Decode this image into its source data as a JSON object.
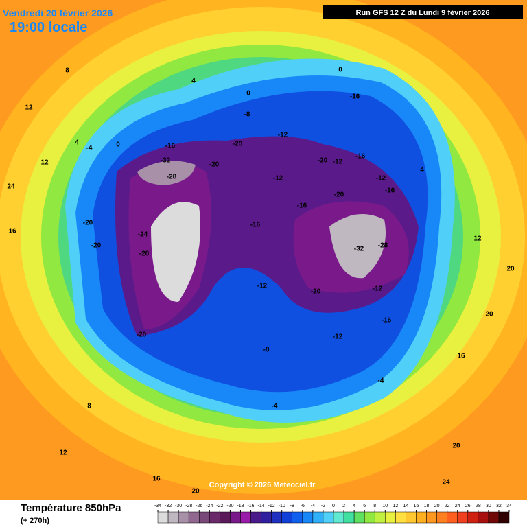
{
  "header": {
    "date": "Vendredi 20 février 2026",
    "time": "19:00 locale",
    "run": "Run GFS 12 Z du Lundi 9 février 2026"
  },
  "copyright": "Copyright © 2026 Meteociel.fr",
  "legend": {
    "title": "Température 850hPa",
    "lead": "(+ 270h)",
    "ticks": [
      -34,
      -32,
      -30,
      -28,
      -26,
      -24,
      -22,
      -20,
      -18,
      -16,
      -14,
      -12,
      -10,
      -8,
      -6,
      -4,
      -2,
      0,
      2,
      4,
      6,
      8,
      10,
      12,
      14,
      16,
      18,
      20,
      22,
      24,
      26,
      28,
      30,
      32,
      34
    ],
    "colors": [
      "#dcdcdc",
      "#c0b8c0",
      "#a890a8",
      "#906890",
      "#784878",
      "#6a2a6a",
      "#5a1a5a",
      "#7a1a8a",
      "#9a1aaa",
      "#4a1a8a",
      "#3020a0",
      "#2030c0",
      "#1040d8",
      "#1060f0",
      "#1888f8",
      "#30b0f8",
      "#50d0f8",
      "#60e8d0",
      "#40e0a0",
      "#60e060",
      "#90e840",
      "#c0f040",
      "#e8f040",
      "#ffe040",
      "#ffc830",
      "#ffb020",
      "#ff9820",
      "#ff8020",
      "#ff6020",
      "#f04020",
      "#d02010",
      "#a81010",
      "#700808",
      "#300000"
    ]
  },
  "map": {
    "labels": [
      -16,
      -8,
      -12,
      -20,
      -16,
      -32,
      -28,
      -20,
      -12,
      -20,
      -12,
      -16,
      -16,
      -12,
      -20,
      -16,
      -16,
      -24,
      -28,
      -20,
      -20,
      -12,
      -20,
      -32,
      -28,
      -12,
      -16,
      -12,
      -8,
      -20,
      -4,
      -4,
      0,
      0,
      4,
      8,
      12,
      12,
      16,
      8,
      12,
      16,
      20,
      20,
      20,
      24,
      24,
      20,
      16,
      12,
      4,
      -4,
      4,
      0
    ]
  }
}
